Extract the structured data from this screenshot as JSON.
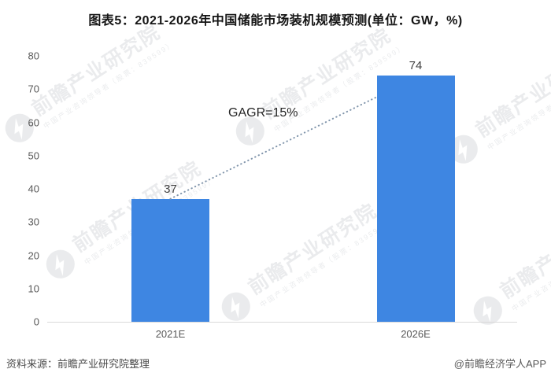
{
  "chart_data": {
    "type": "bar",
    "title": "图表5：2021-2026年中国储能市场装机规模预测(单位：GW，%)",
    "categories": [
      "2021E",
      "2026E"
    ],
    "values": [
      37,
      74
    ],
    "xlabel": "",
    "ylabel": "",
    "ylim": [
      0,
      80
    ],
    "yticks": [
      0,
      10,
      20,
      30,
      40,
      50,
      60,
      70,
      80
    ],
    "grid": false,
    "legend": false,
    "annotation": {
      "label": "GAGR=15%",
      "type": "dotted-trendline-between-bars"
    },
    "colors": {
      "bar": "#3E86E2",
      "trendline": "#8296AC",
      "axis_line": "#D9D9D9",
      "tick_label": "#595959",
      "value_label": "#404040"
    }
  },
  "footer": {
    "source": "资料来源：前瞻产业研究院整理",
    "credit": "@前瞻经济学人APP"
  },
  "watermark": {
    "icon": "qianzhan-logo-icon",
    "text": "前瞻产业研究院",
    "subtext": "中国产业咨询领导者（股票：839599）"
  }
}
